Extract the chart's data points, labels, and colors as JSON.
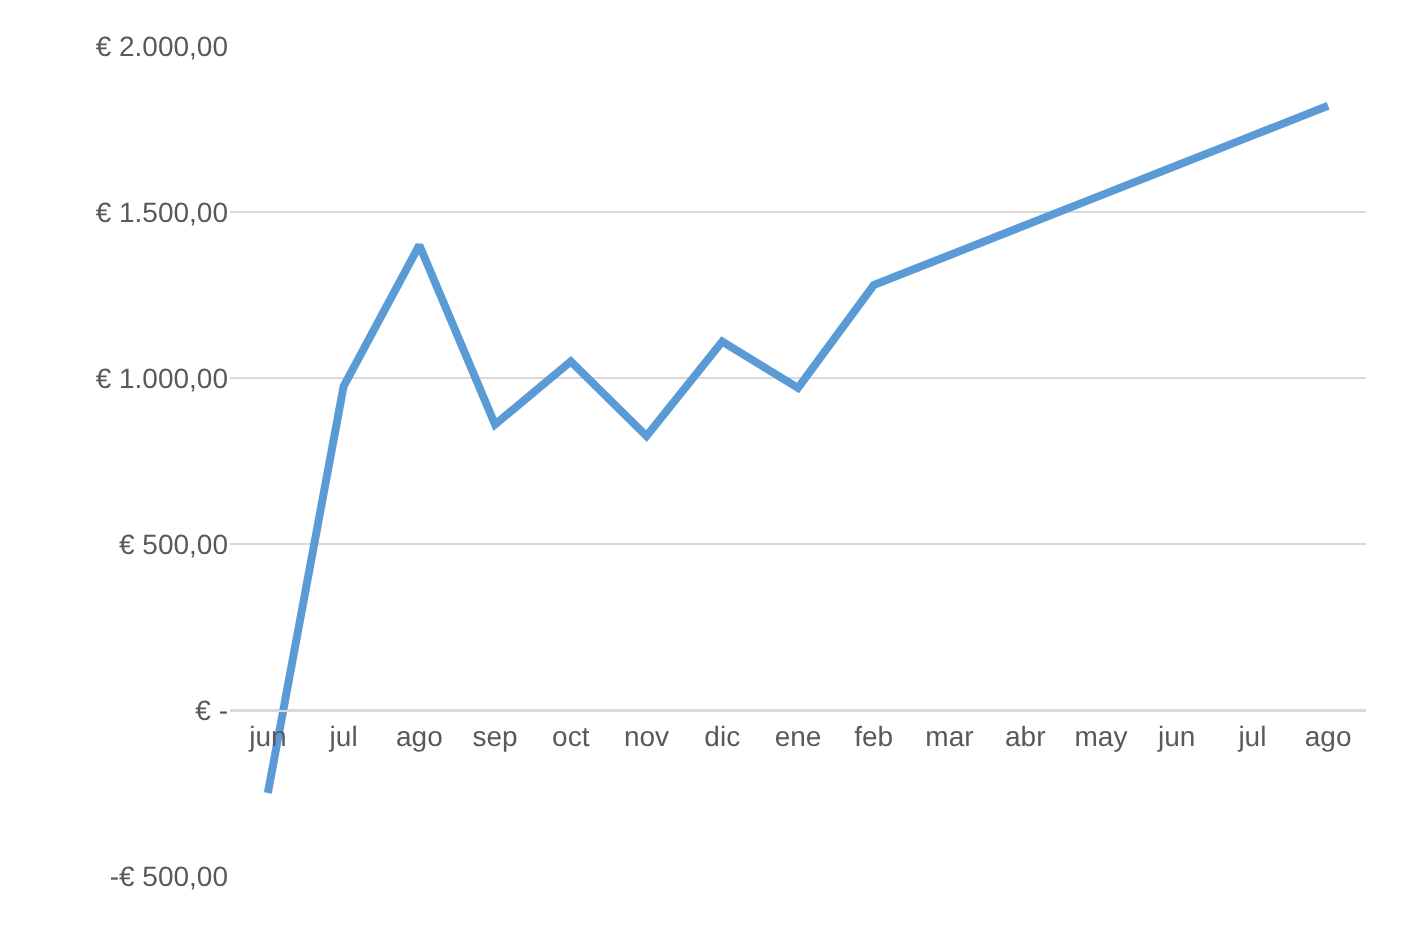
{
  "chart_data": {
    "type": "line",
    "categories": [
      "jun",
      "jul",
      "ago",
      "sep",
      "oct",
      "nov",
      "dic",
      "ene",
      "feb",
      "mar",
      "abr",
      "may",
      "jun",
      "jul",
      "ago"
    ],
    "series": [
      {
        "color": "#5b9bd5",
        "values": [
          -250,
          975,
          1400,
          860,
          1050,
          825,
          1110,
          970,
          1280,
          1370,
          1460,
          1550,
          1640,
          1730,
          1820
        ]
      }
    ],
    "ylim": [
      -500,
      2000
    ],
    "yticks": [
      {
        "value": -500,
        "label": "-€ 500,00"
      },
      {
        "value": 0,
        "label": "€ -"
      },
      {
        "value": 500,
        "label": "€ 500,00"
      },
      {
        "value": 1000,
        "label": "€ 1.000,00"
      },
      {
        "value": 1500,
        "label": "€ 1.500,00"
      },
      {
        "value": 2000,
        "label": "€ 2.000,00"
      }
    ],
    "grid": "y",
    "legend": false,
    "marker": "none",
    "line_style": "solid"
  }
}
